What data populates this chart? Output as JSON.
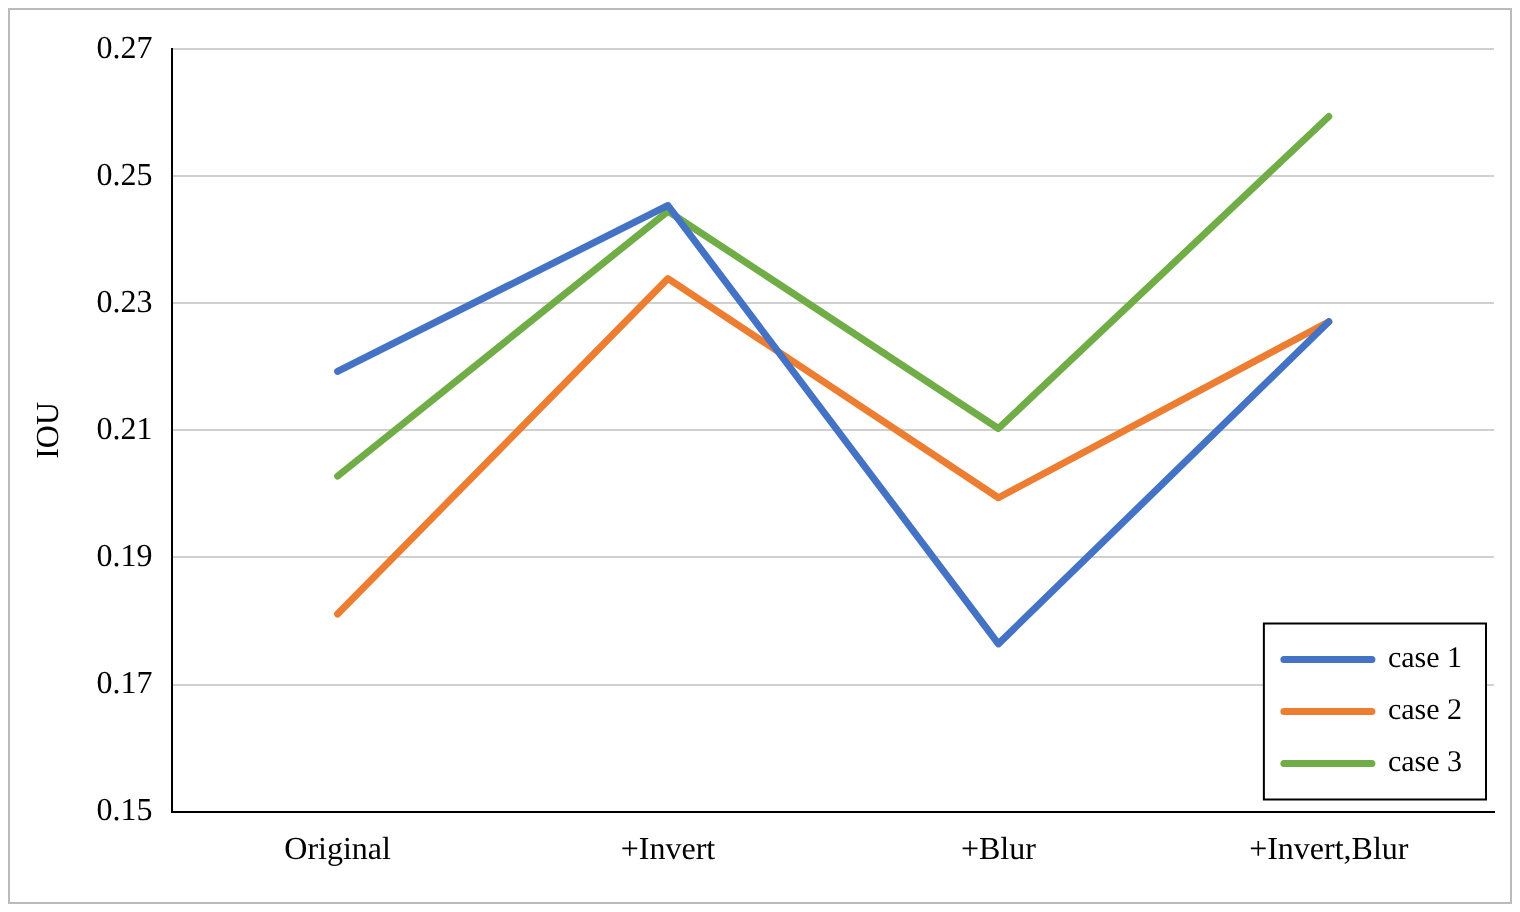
{
  "chart_data": {
    "type": "line",
    "ylabel": "IOU",
    "categories": [
      "Original",
      "+Invert",
      "+Blur",
      "+Invert,Blur"
    ],
    "series": [
      {
        "name": "case 1",
        "color": "#4472c4",
        "values": [
          0.2193,
          0.2454,
          0.1764,
          0.2271
        ]
      },
      {
        "name": "case 2",
        "color": "#ed7d31",
        "values": [
          0.1811,
          0.2339,
          0.1994,
          0.2271
        ]
      },
      {
        "name": "case 3",
        "color": "#70ad47",
        "values": [
          0.2028,
          0.2445,
          0.2103,
          0.2594
        ]
      }
    ],
    "ylim": [
      0.15,
      0.27
    ],
    "yticks": [
      0.15,
      0.17,
      0.19,
      0.21,
      0.23,
      0.25,
      0.27
    ],
    "grid": "y",
    "legend": "bottom right",
    "marker": "none",
    "line_style": "solid"
  }
}
